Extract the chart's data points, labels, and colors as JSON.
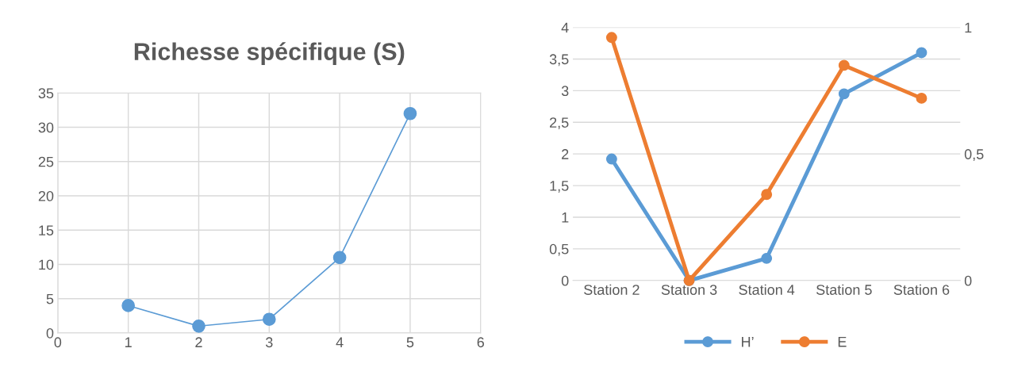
{
  "chart_data": [
    {
      "type": "line",
      "title": "Richesse spécifique (S)",
      "x": [
        1,
        2,
        3,
        4,
        5
      ],
      "series": [
        {
          "color": "#5b9bd5",
          "values": [
            4,
            1,
            2,
            11,
            32
          ]
        }
      ],
      "xlim": [
        0,
        6
      ],
      "xticks": [
        0,
        1,
        2,
        3,
        4,
        5,
        6
      ],
      "ylim": [
        0,
        35
      ],
      "yticks": [
        0,
        5,
        10,
        15,
        20,
        25,
        30,
        35
      ],
      "grid": true,
      "marker": "circle",
      "line_style": "solid",
      "legend": false
    },
    {
      "type": "line",
      "categories": [
        "Station 2",
        "Station 3",
        "Station 4",
        "Station 5",
        "Station 6"
      ],
      "series": [
        {
          "name": "H’",
          "color": "#5b9bd5",
          "values": [
            1.92,
            0,
            0.35,
            2.95,
            3.6
          ]
        },
        {
          "name": "E",
          "color": "#ed7d31",
          "axis": "y2",
          "values": [
            0.96,
            0,
            0.34,
            0.85,
            0.72
          ]
        }
      ],
      "ylim": [
        0,
        4
      ],
      "yticks": [
        0,
        {
          "value": 0.5,
          "label": "0,5"
        },
        1,
        {
          "value": 1.5,
          "label": "1,5"
        },
        2,
        {
          "value": 2.5,
          "label": "2,5"
        },
        3,
        {
          "value": 3.5,
          "label": "3,5"
        },
        4
      ],
      "y2lim": [
        0,
        1
      ],
      "y2ticks": [
        0,
        {
          "value": 0.5,
          "label": "0,5"
        },
        1
      ],
      "grid": "y",
      "marker": "circle",
      "line_style": "solid",
      "legend": "bottom"
    }
  ]
}
